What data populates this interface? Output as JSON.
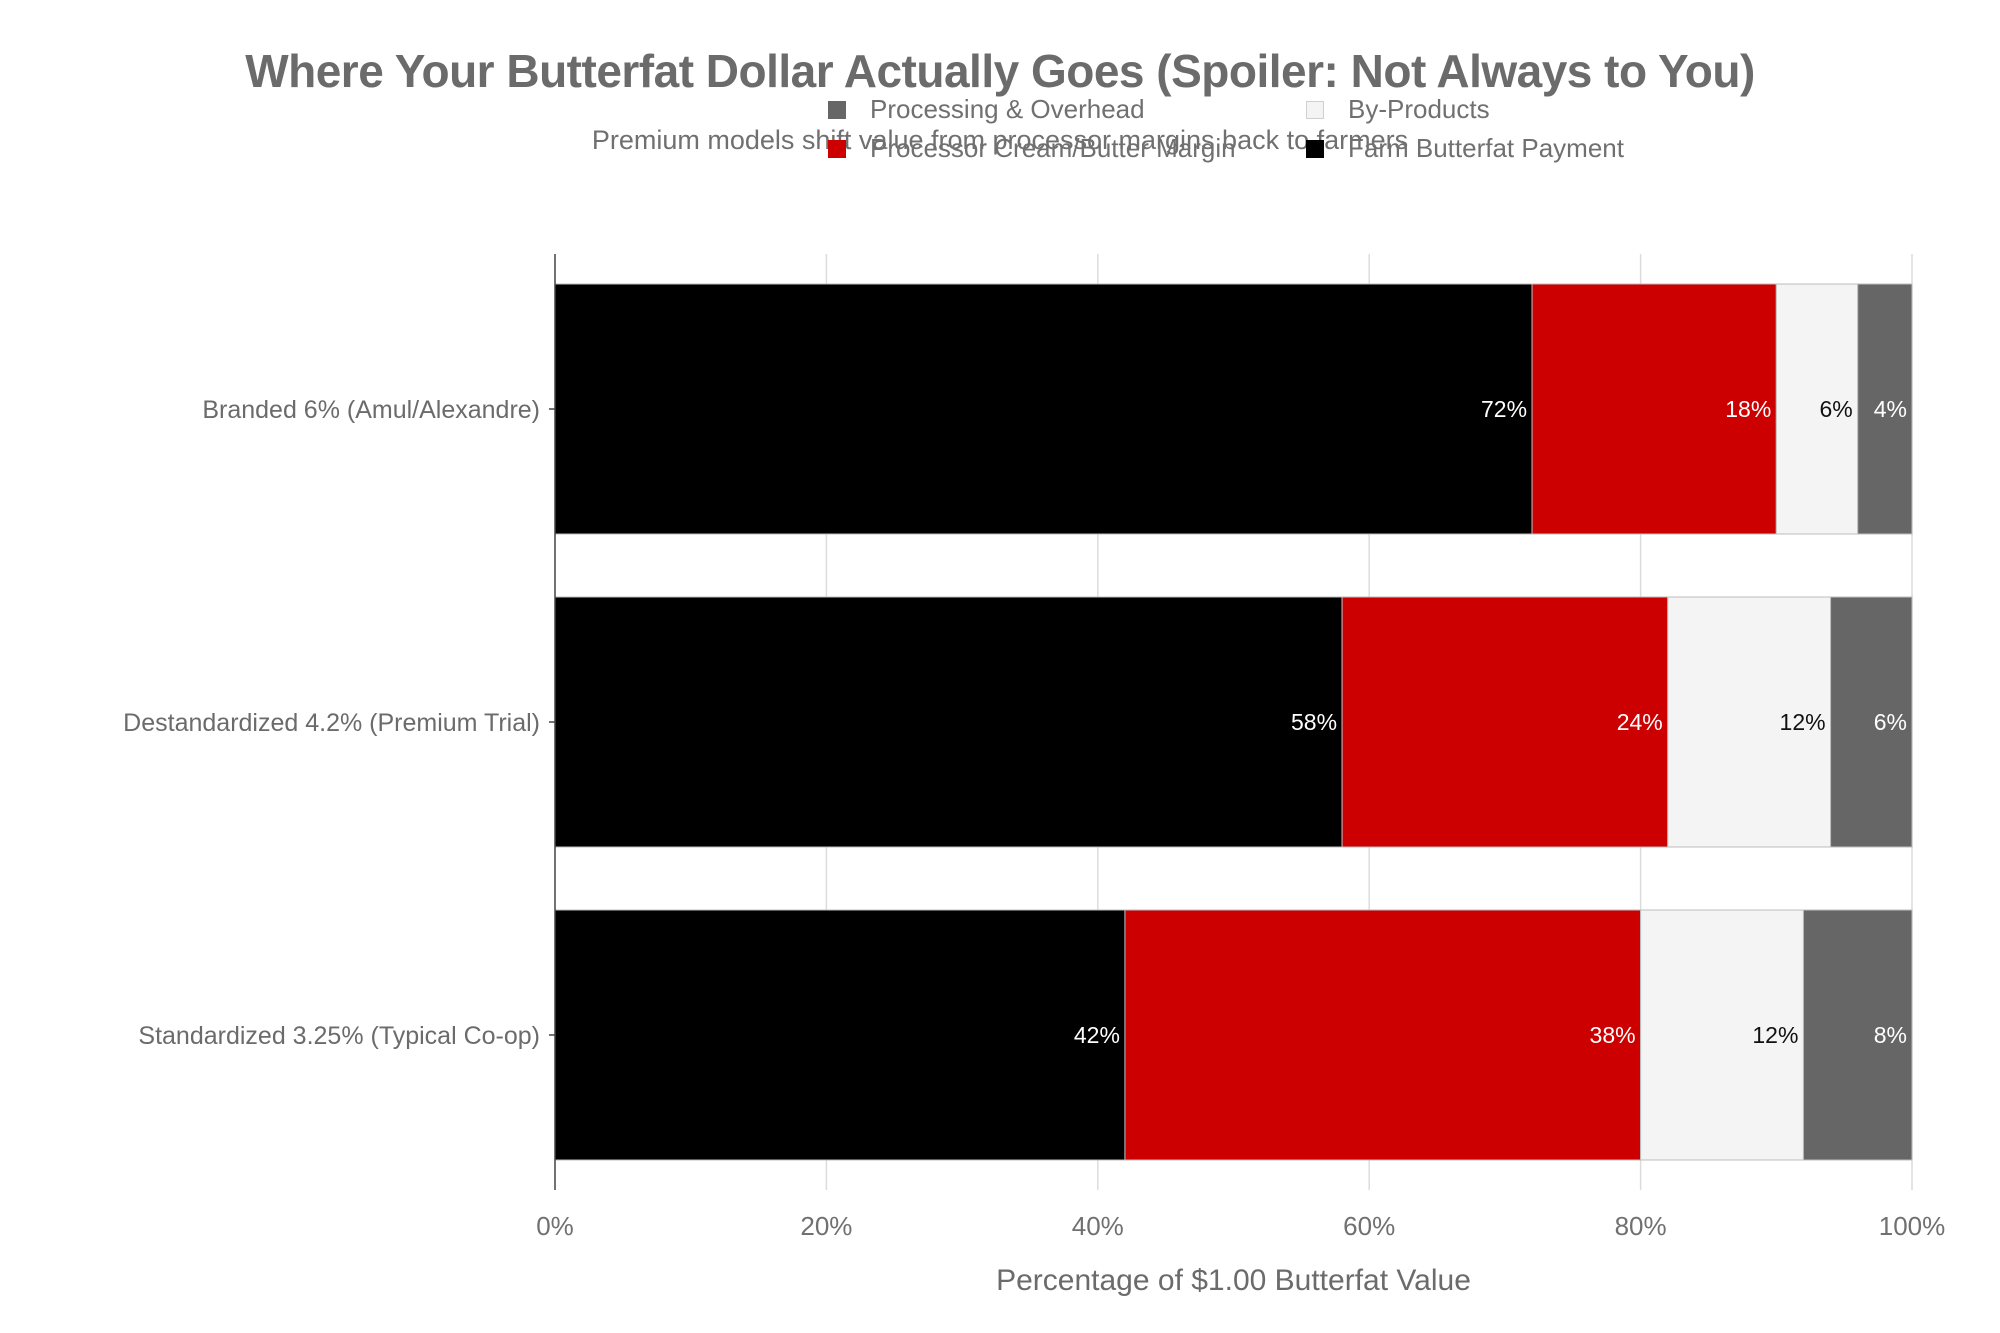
{
  "title": "Where Your Butterfat Dollar Actually Goes (Spoiler: Not Always to You)",
  "subtitle": "Premium models shift value from processor margins back to farmers",
  "chart_data": {
    "type": "bar",
    "orientation": "horizontal",
    "stacked": true,
    "title": "Where Your Butterfat Dollar Actually Goes (Spoiler: Not Always to You)",
    "subtitle": "Premium models shift value from processor margins back to farmers",
    "xlabel": "Percentage of $1.00 Butterfat Value",
    "ylabel": "",
    "xlim": [
      0,
      100
    ],
    "x_ticks": [
      "0%",
      "20%",
      "40%",
      "60%",
      "80%",
      "100%"
    ],
    "grid": true,
    "legend_position": "top",
    "categories": [
      "Branded 6% (Amul/Alexandre)",
      "Destandardized 4.2% (Premium Trial)",
      "Standardized 3.25% (Typical Co-op)"
    ],
    "series": [
      {
        "name": "Farm Butterfat Payment",
        "color": "#000000",
        "label_color": "#ffffff",
        "values": [
          72,
          58,
          42
        ]
      },
      {
        "name": "Processor Cream/Butter Margin",
        "color": "#cc0000",
        "label_color": "#ffffff",
        "values": [
          18,
          24,
          38
        ]
      },
      {
        "name": "By-Products",
        "color": "#f4f4f4",
        "label_color": "#111111",
        "values": [
          6,
          12,
          12
        ]
      },
      {
        "name": "Processing & Overhead",
        "color": "#666666",
        "label_color": "#ffffff",
        "values": [
          4,
          6,
          8
        ]
      }
    ],
    "data_labels": [
      [
        "72%",
        "18%",
        "6%",
        "4%"
      ],
      [
        "58%",
        "24%",
        "12%",
        "6%"
      ],
      [
        "42%",
        "38%",
        "12%",
        "8%"
      ]
    ]
  },
  "legend": {
    "items": [
      {
        "label": "Processing & Overhead",
        "color": "#666666"
      },
      {
        "label": "By-Products",
        "color": "#f4f4f4"
      },
      {
        "label": "Processor Cream/Butter Margin",
        "color": "#cc0000"
      },
      {
        "label": "Farm Butterfat Payment",
        "color": "#000000"
      }
    ]
  }
}
